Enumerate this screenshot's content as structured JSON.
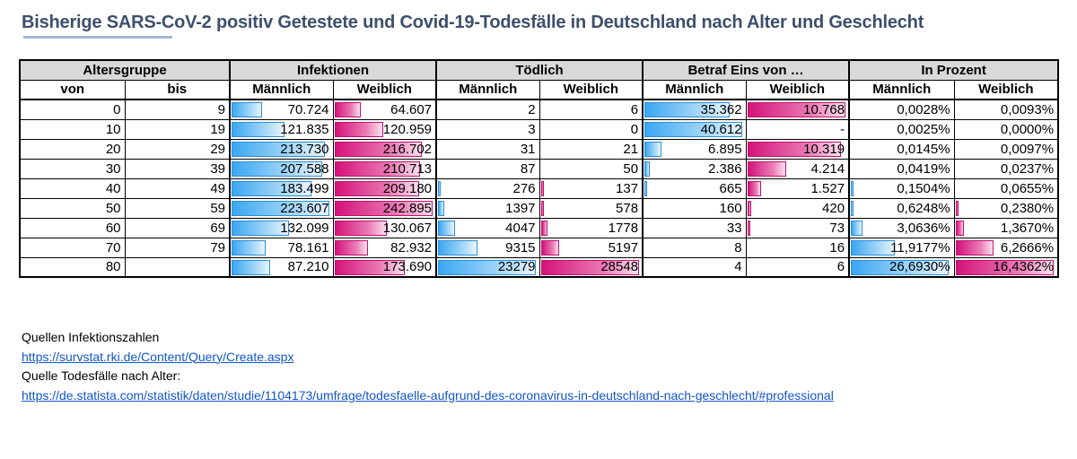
{
  "title": "Bisherige SARS-CoV-2 positiv Getestete und Covid-19-Todesfälle in Deutschland nach Alter und Geschlecht",
  "table": {
    "group_headers": [
      "Altersgruppe",
      "Infektionen",
      "Tödlich",
      "Betraf Eins von …",
      "In Prozent"
    ],
    "sub_headers": [
      "von",
      "bis",
      "Männlich",
      "Weiblich",
      "Männlich",
      "Weiblich",
      "Männlich",
      "Weiblich",
      "Männlich",
      "Weiblich"
    ],
    "bar_colors": {
      "male": "#3aa7f2",
      "female": "#d4137a"
    },
    "rows": [
      {
        "von": "0",
        "bis": "9",
        "inf_m": "70.724",
        "inf_w": "64.607",
        "tod_m": "2",
        "tod_w": "6",
        "betraf_m": "35.362",
        "betraf_w": "10.768",
        "proz_m": "0,0028%",
        "proz_w": "0,0093%"
      },
      {
        "von": "10",
        "bis": "19",
        "inf_m": "121.835",
        "inf_w": "120.959",
        "tod_m": "3",
        "tod_w": "0",
        "betraf_m": "40.612",
        "betraf_w": "-",
        "proz_m": "0,0025%",
        "proz_w": "0,0000%"
      },
      {
        "von": "20",
        "bis": "29",
        "inf_m": "213.730",
        "inf_w": "216.702",
        "tod_m": "31",
        "tod_w": "21",
        "betraf_m": "6.895",
        "betraf_w": "10.319",
        "proz_m": "0,0145%",
        "proz_w": "0,0097%"
      },
      {
        "von": "30",
        "bis": "39",
        "inf_m": "207.588",
        "inf_w": "210.713",
        "tod_m": "87",
        "tod_w": "50",
        "betraf_m": "2.386",
        "betraf_w": "4.214",
        "proz_m": "0,0419%",
        "proz_w": "0,0237%"
      },
      {
        "von": "40",
        "bis": "49",
        "inf_m": "183.499",
        "inf_w": "209.180",
        "tod_m": "276",
        "tod_w": "137",
        "betraf_m": "665",
        "betraf_w": "1.527",
        "proz_m": "0,1504%",
        "proz_w": "0,0655%"
      },
      {
        "von": "50",
        "bis": "59",
        "inf_m": "223.607",
        "inf_w": "242.895",
        "tod_m": "1397",
        "tod_w": "578",
        "betraf_m": "160",
        "betraf_w": "420",
        "proz_m": "0,6248%",
        "proz_w": "0,2380%"
      },
      {
        "von": "60",
        "bis": "69",
        "inf_m": "132.099",
        "inf_w": "130.067",
        "tod_m": "4047",
        "tod_w": "1778",
        "betraf_m": "33",
        "betraf_w": "73",
        "proz_m": "3,0636%",
        "proz_w": "1,3670%"
      },
      {
        "von": "70",
        "bis": "79",
        "inf_m": "78.161",
        "inf_w": "82.932",
        "tod_m": "9315",
        "tod_w": "5197",
        "betraf_m": "8",
        "betraf_w": "16",
        "proz_m": "11,9177%",
        "proz_w": "6,2666%"
      },
      {
        "von": "80",
        "bis": "",
        "inf_m": "87.210",
        "inf_w": "173.690",
        "tod_m": "23279",
        "tod_w": "28548",
        "betraf_m": "4",
        "betraf_w": "6",
        "proz_m": "26,6930%",
        "proz_w": "16,4362%"
      }
    ]
  },
  "sources": {
    "infections_label": "Quellen Infektionszahlen",
    "infections_url": "https://survstat.rki.de/Content/Query/Create.aspx",
    "deaths_label": "Quelle Todesfälle nach Alter:",
    "deaths_url": "https://de.statista.com/statistik/daten/studie/1104173/umfrage/todesfaelle-aufgrund-des-coronavirus-in-deutschland-nach-geschlecht/#professional"
  }
}
